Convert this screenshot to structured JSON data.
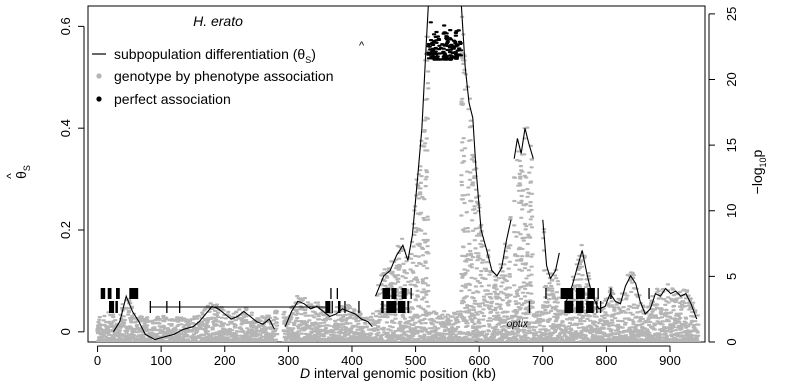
{
  "chart_data": {
    "type": "scatter",
    "title": "H. erato",
    "xlabel_italic": "D",
    "xlabel_rest": " interval genomic position (kb)",
    "ylabel_left_symbol": "θ",
    "ylabel_left_sub": "S",
    "ylabel_right_prefix": "−log",
    "ylabel_right_sub": "10",
    "ylabel_right_suffix": "p",
    "xlim": [
      -15,
      955
    ],
    "ylim_left": [
      -0.02,
      0.64
    ],
    "ylim_right": [
      0,
      25.6
    ],
    "x_ticks": [
      0,
      100,
      200,
      300,
      400,
      500,
      600,
      700,
      800,
      900
    ],
    "y_left_ticks": [
      0,
      0.2,
      0.4,
      0.6
    ],
    "y_left_tick_labels": [
      "0",
      "0.2",
      "0.4",
      "0.6"
    ],
    "y_right_ticks": [
      0,
      5,
      10,
      15,
      20,
      25
    ],
    "legend": {
      "placement": "top-left",
      "line_label": "subpopulation differentiation (θ",
      "line_label_sub": "S",
      "line_label_end": ")",
      "gray_label": "genotype by phenotype association",
      "black_label": "perfect association"
    },
    "gene_label": "optix",
    "gene_label_x": 660,
    "colors": {
      "line": "#000000",
      "gray_points": "#b5b5b5",
      "black_points": "#000000"
    },
    "theta_segments": [
      [
        [
          0,
          -0.04
        ],
        [
          12,
          -0.035
        ]
      ],
      [
        [
          25,
          0.0
        ],
        [
          35,
          0.02
        ],
        [
          45,
          0.07
        ],
        [
          55,
          0.04
        ],
        [
          65,
          0.02
        ],
        [
          75,
          -0.005
        ],
        [
          90,
          -0.015
        ],
        [
          105,
          -0.01
        ],
        [
          120,
          -0.005
        ],
        [
          135,
          0.005
        ],
        [
          150,
          0.01
        ],
        [
          160,
          0.02
        ],
        [
          170,
          0.035
        ],
        [
          180,
          0.05
        ],
        [
          190,
          0.045
        ],
        [
          200,
          0.035
        ],
        [
          210,
          0.025
        ],
        [
          220,
          0.03
        ],
        [
          230,
          0.04
        ],
        [
          240,
          0.03
        ],
        [
          250,
          0.02
        ],
        [
          260,
          0.015
        ],
        [
          270,
          0.025
        ],
        [
          278,
          0.005
        ]
      ],
      [
        [
          295,
          0.01
        ],
        [
          305,
          0.04
        ],
        [
          315,
          0.06
        ],
        [
          325,
          0.055
        ],
        [
          335,
          0.045
        ],
        [
          345,
          0.05
        ],
        [
          355,
          0.04
        ],
        [
          365,
          0.03
        ],
        [
          375,
          0.035
        ],
        [
          385,
          0.045
        ],
        [
          395,
          0.04
        ],
        [
          405,
          0.035
        ],
        [
          415,
          0.025
        ],
        [
          425,
          0.02
        ],
        [
          432,
          0.01
        ]
      ],
      [
        [
          437,
          0.07
        ],
        [
          450,
          0.11
        ],
        [
          460,
          0.12
        ],
        [
          470,
          0.15
        ],
        [
          480,
          0.17
        ],
        [
          488,
          0.14
        ],
        [
          495,
          0.19
        ],
        [
          503,
          0.3
        ],
        [
          510,
          0.4
        ],
        [
          516,
          0.55
        ],
        [
          520,
          0.64
        ]
      ],
      [
        [
          572,
          0.64
        ],
        [
          578,
          0.52
        ],
        [
          584,
          0.45
        ],
        [
          590,
          0.42
        ],
        [
          595,
          0.32
        ],
        [
          603,
          0.2
        ],
        [
          612,
          0.16
        ],
        [
          620,
          0.12
        ],
        [
          628,
          0.11
        ],
        [
          635,
          0.125
        ],
        [
          643,
          0.18
        ],
        [
          650,
          0.22
        ]
      ],
      [
        [
          655,
          0.34
        ],
        [
          660,
          0.38
        ],
        [
          666,
          0.35
        ],
        [
          672,
          0.4
        ],
        [
          678,
          0.37
        ],
        [
          685,
          0.34
        ]
      ],
      [
        [
          700,
          0.22
        ],
        [
          706,
          0.13
        ],
        [
          712,
          0.105
        ],
        [
          720,
          0.12
        ],
        [
          726,
          0.155
        ]
      ],
      [
        [
          737,
          0.06
        ],
        [
          746,
          0.09
        ],
        [
          755,
          0.13
        ],
        [
          762,
          0.16
        ],
        [
          770,
          0.11
        ],
        [
          778,
          0.07
        ],
        [
          788,
          0.045
        ],
        [
          798,
          0.05
        ],
        [
          806,
          0.075
        ],
        [
          814,
          0.06
        ],
        [
          822,
          0.055
        ],
        [
          830,
          0.09
        ],
        [
          838,
          0.11
        ],
        [
          846,
          0.095
        ],
        [
          853,
          0.06
        ],
        [
          861,
          0.035
        ],
        [
          869,
          0.045
        ],
        [
          877,
          0.075
        ],
        [
          885,
          0.07
        ],
        [
          893,
          0.085
        ],
        [
          901,
          0.075
        ],
        [
          909,
          0.08
        ],
        [
          917,
          0.07
        ],
        [
          925,
          0.075
        ],
        [
          933,
          0.055
        ],
        [
          942,
          0.025
        ]
      ]
    ],
    "gene_blocks": [
      {
        "row": 1,
        "start": 5,
        "end": 12
      },
      {
        "row": 1,
        "start": 16,
        "end": 22
      },
      {
        "row": 1,
        "start": 29,
        "end": 35
      },
      {
        "row": 1,
        "start": 50,
        "end": 64
      },
      {
        "row": 1,
        "start": 366,
        "end": 368
      },
      {
        "row": 1,
        "start": 376,
        "end": 378
      },
      {
        "row": 1,
        "start": 448,
        "end": 460
      },
      {
        "row": 1,
        "start": 462,
        "end": 470
      },
      {
        "row": 1,
        "start": 478,
        "end": 486
      },
      {
        "row": 1,
        "start": 492,
        "end": 494
      },
      {
        "row": 1,
        "start": 704,
        "end": 706
      },
      {
        "row": 1,
        "start": 728,
        "end": 748
      },
      {
        "row": 1,
        "start": 752,
        "end": 766
      },
      {
        "row": 1,
        "start": 770,
        "end": 782
      },
      {
        "row": 1,
        "start": 786,
        "end": 788
      },
      {
        "row": 1,
        "start": 806,
        "end": 808
      },
      {
        "row": 1,
        "start": 866,
        "end": 868
      },
      {
        "row": 2,
        "start": 18,
        "end": 26
      },
      {
        "row": 2,
        "start": 28,
        "end": 32
      },
      {
        "row": 2,
        "start": 82,
        "end": 84
      },
      {
        "row": 2,
        "start": 108,
        "end": 110
      },
      {
        "row": 2,
        "start": 128,
        "end": 130
      },
      {
        "row": 2,
        "start": 358,
        "end": 366
      },
      {
        "row": 2,
        "start": 368,
        "end": 370
      },
      {
        "row": 2,
        "start": 378,
        "end": 382
      },
      {
        "row": 2,
        "start": 388,
        "end": 390
      },
      {
        "row": 2,
        "start": 410,
        "end": 412
      },
      {
        "row": 2,
        "start": 446,
        "end": 450
      },
      {
        "row": 2,
        "start": 454,
        "end": 470
      },
      {
        "row": 2,
        "start": 472,
        "end": 484
      },
      {
        "row": 2,
        "start": 487,
        "end": 490
      },
      {
        "row": 2,
        "start": 678,
        "end": 680
      },
      {
        "row": 2,
        "start": 734,
        "end": 748
      },
      {
        "row": 2,
        "start": 752,
        "end": 764
      },
      {
        "row": 2,
        "start": 768,
        "end": 780
      },
      {
        "row": 2,
        "start": 784,
        "end": 786
      },
      {
        "row": 2,
        "start": 790,
        "end": 792
      }
    ],
    "gene_lines": [
      {
        "row": 2,
        "start": 82,
        "end": 358
      }
    ]
  }
}
